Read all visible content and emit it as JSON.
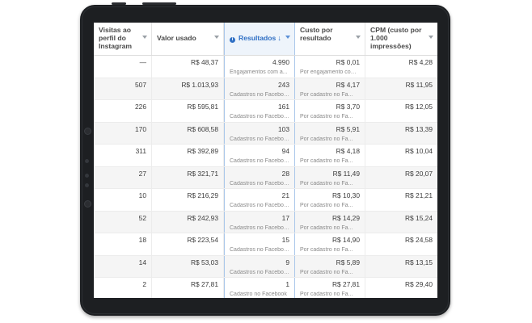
{
  "columns": [
    {
      "label": "Visitas ao perfil do Instagram"
    },
    {
      "label": "Valor usado"
    },
    {
      "label": "Resultados",
      "sort_icon": "↓"
    },
    {
      "label": "Custo por resultado"
    },
    {
      "label": "CPM (custo por 1.000 impressões)"
    }
  ],
  "rows": [
    {
      "visits": "—",
      "spent": "R$ 48,37",
      "results": "4.990",
      "results_type": "Engajamentos com a...",
      "cost": "R$ 0,01",
      "cost_type": "Por engajamento com ...",
      "cpm": "R$ 4,28"
    },
    {
      "visits": "507",
      "spent": "R$ 1.013,93",
      "results": "243",
      "results_type": "Cadastros no Facebook",
      "cost": "R$ 4,17",
      "cost_type": "Por cadastro no Fa...",
      "cpm": "R$ 11,95"
    },
    {
      "visits": "226",
      "spent": "R$ 595,81",
      "results": "161",
      "results_type": "Cadastros no Facebook",
      "cost": "R$ 3,70",
      "cost_type": "Por cadastro no Fa...",
      "cpm": "R$ 12,05"
    },
    {
      "visits": "170",
      "spent": "R$ 608,58",
      "results": "103",
      "results_type": "Cadastros no Facebook",
      "cost": "R$ 5,91",
      "cost_type": "Por cadastro no Fa...",
      "cpm": "R$ 13,39"
    },
    {
      "visits": "311",
      "spent": "R$ 392,89",
      "results": "94",
      "results_type": "Cadastros no Facebook",
      "cost": "R$ 4,18",
      "cost_type": "Por cadastro no Fa...",
      "cpm": "R$ 10,04"
    },
    {
      "visits": "27",
      "spent": "R$ 321,71",
      "results": "28",
      "results_type": "Cadastros no Facebook",
      "cost": "R$ 11,49",
      "cost_type": "Por cadastro no Fa...",
      "cpm": "R$ 20,07"
    },
    {
      "visits": "10",
      "spent": "R$ 216,29",
      "results": "21",
      "results_type": "Cadastros no Facebook",
      "cost": "R$ 10,30",
      "cost_type": "Por cadastro no Fa...",
      "cpm": "R$ 21,21"
    },
    {
      "visits": "52",
      "spent": "R$ 242,93",
      "results": "17",
      "results_type": "Cadastros no Facebook",
      "cost": "R$ 14,29",
      "cost_type": "Por cadastro no Fa...",
      "cpm": "R$ 15,24"
    },
    {
      "visits": "18",
      "spent": "R$ 223,54",
      "results": "15",
      "results_type": "Cadastros no Facebook",
      "cost": "R$ 14,90",
      "cost_type": "Por cadastro no Fa...",
      "cpm": "R$ 24,58"
    },
    {
      "visits": "14",
      "spent": "R$ 53,03",
      "results": "9",
      "results_type": "Cadastros no Facebook",
      "cost": "R$ 5,89",
      "cost_type": "Por cadastro no Fa...",
      "cpm": "R$ 13,15"
    },
    {
      "visits": "2",
      "spent": "R$ 27,81",
      "results": "1",
      "results_type": "Cadastro no Facebook",
      "cost": "R$ 27,81",
      "cost_type": "Por cadastro no Fa...",
      "cpm": "R$ 29,40"
    }
  ],
  "colors": {
    "accent": "#2f6fc4",
    "device": "#1d1f22"
  }
}
